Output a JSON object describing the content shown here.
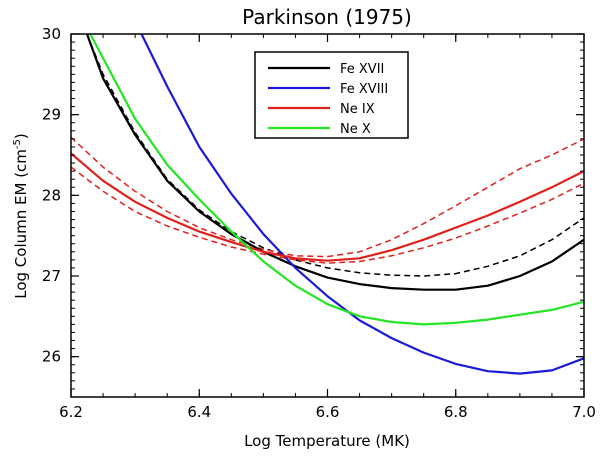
{
  "chart_data": {
    "type": "line",
    "title": "Parkinson (1975)",
    "xlabel": "Log Temperature (MK)",
    "ylabel": "Log Column EM (cm",
    "ylabel_exponent": "-5",
    "ylabel_close": ")",
    "xlim": [
      6.2,
      7.0
    ],
    "ylim": [
      25.5,
      30.0
    ],
    "xticks": [
      6.2,
      6.4,
      6.6,
      6.8,
      7.0
    ],
    "xtick_labels": [
      "6.2",
      "6.4",
      "6.6",
      "6.8",
      "7.0"
    ],
    "yticks": [
      26,
      27,
      28,
      29,
      30
    ],
    "ytick_labels": [
      "26",
      "27",
      "28",
      "29",
      "30"
    ],
    "legend_position": "top-center",
    "series": [
      {
        "name": "Fe XVII",
        "color": "#000000",
        "dashed": false,
        "x": [
          6.225,
          6.25,
          6.3,
          6.35,
          6.4,
          6.45,
          6.5,
          6.55,
          6.6,
          6.65,
          6.7,
          6.75,
          6.8,
          6.85,
          6.9,
          6.95,
          7.0
        ],
        "y": [
          30.0,
          29.45,
          28.75,
          28.18,
          27.8,
          27.52,
          27.3,
          27.12,
          26.98,
          26.9,
          26.85,
          26.83,
          26.83,
          26.88,
          27.0,
          27.18,
          27.45
        ]
      },
      {
        "name": "Fe XVIII",
        "color": "#1a1ad8",
        "dashed": false,
        "x": [
          6.31,
          6.35,
          6.4,
          6.45,
          6.5,
          6.55,
          6.6,
          6.65,
          6.7,
          6.75,
          6.8,
          6.85,
          6.9,
          6.95,
          7.0
        ],
        "y": [
          30.0,
          29.35,
          28.6,
          28.02,
          27.52,
          27.1,
          26.75,
          26.45,
          26.23,
          26.05,
          25.91,
          25.82,
          25.79,
          25.83,
          25.98
        ]
      },
      {
        "name": "Ne IX",
        "color": "#e0201a",
        "dashed": false,
        "x": [
          6.2,
          6.25,
          6.3,
          6.35,
          6.4,
          6.45,
          6.5,
          6.55,
          6.6,
          6.65,
          6.7,
          6.75,
          6.8,
          6.85,
          6.9,
          6.95,
          7.0
        ],
        "y": [
          28.52,
          28.18,
          27.92,
          27.72,
          27.55,
          27.42,
          27.3,
          27.22,
          27.19,
          27.22,
          27.32,
          27.45,
          27.6,
          27.75,
          27.92,
          28.1,
          28.3
        ]
      },
      {
        "name": "Ne X",
        "color": "#22e622",
        "dashed": false,
        "x": [
          6.23,
          6.25,
          6.3,
          6.35,
          6.4,
          6.45,
          6.5,
          6.55,
          6.6,
          6.65,
          6.7,
          6.75,
          6.8,
          6.85,
          6.9,
          6.95,
          7.0
        ],
        "y": [
          30.0,
          29.7,
          28.95,
          28.38,
          27.95,
          27.55,
          27.18,
          26.88,
          26.65,
          26.5,
          26.43,
          26.4,
          26.42,
          26.46,
          26.52,
          26.58,
          26.68
        ]
      },
      {
        "name": "Fe XVII upper",
        "color": "#000000",
        "dashed": true,
        "x": [
          6.225,
          6.25,
          6.3,
          6.35,
          6.4,
          6.45,
          6.5,
          6.55,
          6.6,
          6.65,
          6.7,
          6.75,
          6.8,
          6.85,
          6.9,
          6.95,
          7.0
        ],
        "y": [
          30.0,
          29.5,
          28.78,
          28.2,
          27.82,
          27.55,
          27.35,
          27.2,
          27.1,
          27.04,
          27.01,
          27.0,
          27.03,
          27.12,
          27.25,
          27.45,
          27.72
        ]
      },
      {
        "name": "Ne IX upper",
        "color": "#e0201a",
        "dashed": true,
        "x": [
          6.2,
          6.25,
          6.3,
          6.35,
          6.4,
          6.45,
          6.5,
          6.55,
          6.6,
          6.65,
          6.7,
          6.75,
          6.8,
          6.85,
          6.9,
          6.95,
          7.0
        ],
        "y": [
          28.72,
          28.35,
          28.05,
          27.8,
          27.6,
          27.45,
          27.33,
          27.25,
          27.24,
          27.3,
          27.45,
          27.65,
          27.87,
          28.1,
          28.33,
          28.5,
          28.7
        ]
      },
      {
        "name": "Ne IX lower",
        "color": "#e0201a",
        "dashed": true,
        "x": [
          6.2,
          6.25,
          6.3,
          6.35,
          6.4,
          6.45,
          6.5,
          6.55,
          6.6,
          6.65,
          6.7,
          6.75,
          6.8,
          6.85,
          6.9,
          6.95,
          7.0
        ],
        "y": [
          28.35,
          28.05,
          27.8,
          27.62,
          27.48,
          27.36,
          27.27,
          27.2,
          27.16,
          27.18,
          27.25,
          27.35,
          27.47,
          27.62,
          27.78,
          27.95,
          28.15
        ]
      }
    ],
    "legend": [
      {
        "label": "Fe XVII",
        "color": "#000000"
      },
      {
        "label": "Fe XVIII",
        "color": "#1a1ad8"
      },
      {
        "label": "Ne IX",
        "color": "#e0201a"
      },
      {
        "label": "Ne X",
        "color": "#22e622"
      }
    ]
  }
}
